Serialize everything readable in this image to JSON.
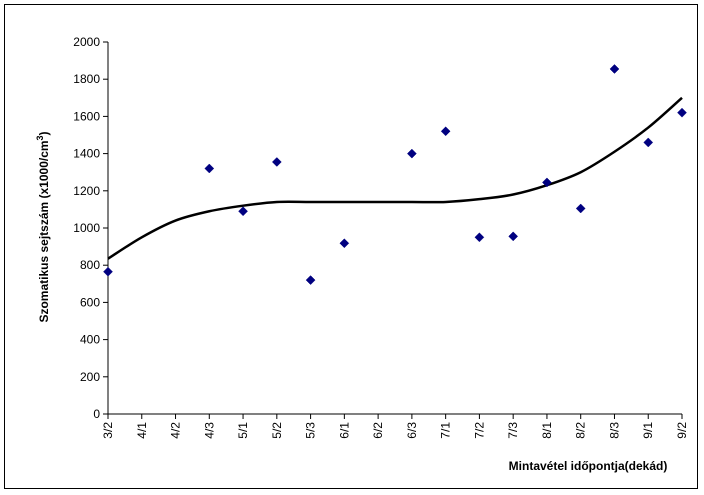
{
  "chart_data": {
    "type": "scatter",
    "title": "",
    "xlabel": "Mintavétel időpontja(dekád)",
    "ylabel": "Szomatikus sejtszám (x1000/cm",
    "ylabel_superscript": "3",
    "ylabel_suffix": ")",
    "categories": [
      "3/2",
      "4/1",
      "4/2",
      "4/3",
      "5/1",
      "5/2",
      "5/3",
      "6/1",
      "6/2",
      "6/3",
      "7/1",
      "7/2",
      "7/3",
      "8/1",
      "8/2",
      "8/3",
      "9/1",
      "9/2"
    ],
    "ylim": [
      0,
      2000
    ],
    "yticks": [
      0,
      200,
      400,
      600,
      800,
      1000,
      1200,
      1400,
      1600,
      1800,
      2000
    ],
    "grid": false,
    "legend": "none",
    "series": [
      {
        "kind": "points",
        "marker": "diamond",
        "color": "#000080",
        "points": [
          {
            "x": "3/2",
            "y": 765
          },
          {
            "x": "4/3",
            "y": 1320
          },
          {
            "x": "5/1",
            "y": 1090
          },
          {
            "x": "5/2",
            "y": 1355
          },
          {
            "x": "5/3",
            "y": 720
          },
          {
            "x": "6/1",
            "y": 918
          },
          {
            "x": "6/3",
            "y": 1400
          },
          {
            "x": "7/1",
            "y": 1520
          },
          {
            "x": "7/2",
            "y": 950
          },
          {
            "x": "7/3",
            "y": 955
          },
          {
            "x": "8/1",
            "y": 1245
          },
          {
            "x": "8/2",
            "y": 1105
          },
          {
            "x": "8/3",
            "y": 1855
          },
          {
            "x": "9/1",
            "y": 1460
          },
          {
            "x": "9/2",
            "y": 1620
          }
        ]
      },
      {
        "kind": "trendline",
        "color": "#000000",
        "values": [
          835,
          950,
          1040,
          1090,
          1120,
          1140,
          1140,
          1140,
          1140,
          1140,
          1140,
          1155,
          1180,
          1230,
          1300,
          1410,
          1540,
          1700
        ]
      }
    ]
  }
}
